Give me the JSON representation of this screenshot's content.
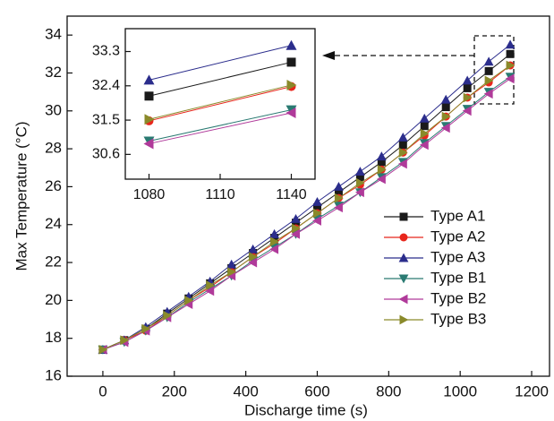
{
  "chart_data": [
    {
      "type": "line",
      "x_label": "Discharge time (s)",
      "y_label": "Max Temperature (°C)",
      "x": [
        0,
        60,
        120,
        180,
        240,
        300,
        360,
        420,
        480,
        540,
        600,
        660,
        720,
        780,
        840,
        900,
        960,
        1020,
        1080,
        1140
      ],
      "series": [
        {
          "name": "Type A1",
          "color": "#1a1a1a",
          "marker": "square",
          "values": [
            17.4,
            17.9,
            18.5,
            19.3,
            20.1,
            20.9,
            21.7,
            22.5,
            23.3,
            24.1,
            24.9,
            25.7,
            26.5,
            27.3,
            28.2,
            29.2,
            30.2,
            31.2,
            32.1,
            33.0
          ]
        },
        {
          "name": "Type A2",
          "color": "#e8261c",
          "marker": "circle",
          "values": [
            17.4,
            17.9,
            18.4,
            19.2,
            20.0,
            20.7,
            21.5,
            22.3,
            23.0,
            23.8,
            24.6,
            25.4,
            26.1,
            26.9,
            27.8,
            28.7,
            29.7,
            30.7,
            31.5,
            32.4
          ]
        },
        {
          "name": "Type A3",
          "color": "#2b2d8c",
          "marker": "triangle-up",
          "values": [
            17.4,
            17.9,
            18.6,
            19.4,
            20.2,
            21.0,
            21.9,
            22.7,
            23.5,
            24.3,
            25.2,
            26.0,
            26.8,
            27.6,
            28.6,
            29.6,
            30.6,
            31.6,
            32.6,
            33.5
          ]
        },
        {
          "name": "Type B1",
          "color": "#2a7a72",
          "marker": "triangle-down",
          "values": [
            17.4,
            17.8,
            18.4,
            19.1,
            19.9,
            20.6,
            21.3,
            22.1,
            22.8,
            23.5,
            24.3,
            25.0,
            25.7,
            26.5,
            27.3,
            28.3,
            29.2,
            30.1,
            31.0,
            31.8
          ]
        },
        {
          "name": "Type B2",
          "color": "#b03a9a",
          "marker": "triangle-left",
          "values": [
            17.4,
            17.8,
            18.4,
            19.1,
            19.8,
            20.5,
            21.3,
            22.0,
            22.7,
            23.5,
            24.2,
            24.9,
            25.7,
            26.4,
            27.2,
            28.2,
            29.1,
            30.0,
            30.9,
            31.7
          ]
        },
        {
          "name": "Type B3",
          "color": "#8a8a2a",
          "marker": "triangle-right",
          "values": [
            17.4,
            17.9,
            18.5,
            19.2,
            20.0,
            20.8,
            21.5,
            22.3,
            23.1,
            23.8,
            24.6,
            25.4,
            26.2,
            26.9,
            27.8,
            28.8,
            29.7,
            30.7,
            31.6,
            32.4
          ]
        }
      ],
      "xlim": [
        -100,
        1250
      ],
      "ylim": [
        16,
        35
      ],
      "xticks": [
        0,
        200,
        400,
        600,
        800,
        1000,
        1200
      ],
      "yticks": [
        16,
        18,
        20,
        22,
        24,
        26,
        28,
        30,
        32,
        34
      ],
      "legend": "lower right"
    },
    {
      "type": "line",
      "x": [
        1080,
        1140
      ],
      "series": [
        {
          "color": "#1a1a1a",
          "marker": "square",
          "values": [
            32.13,
            33.02
          ]
        },
        {
          "color": "#e8261c",
          "marker": "circle",
          "values": [
            31.48,
            32.38
          ]
        },
        {
          "color": "#2b2d8c",
          "marker": "triangle-up",
          "values": [
            32.55,
            33.46
          ]
        },
        {
          "color": "#2a7a72",
          "marker": "triangle-down",
          "values": [
            30.95,
            31.77
          ]
        },
        {
          "color": "#b03a9a",
          "marker": "triangle-left",
          "values": [
            30.88,
            31.69
          ]
        },
        {
          "color": "#8a8a2a",
          "marker": "triangle-right",
          "values": [
            31.52,
            32.42
          ]
        }
      ],
      "xlim": [
        1070,
        1150
      ],
      "ylim": [
        29.95,
        33.9
      ],
      "xticks": [
        1080,
        1110,
        1140
      ],
      "yticks": [
        30.6,
        31.5,
        32.4,
        33.3
      ]
    }
  ]
}
